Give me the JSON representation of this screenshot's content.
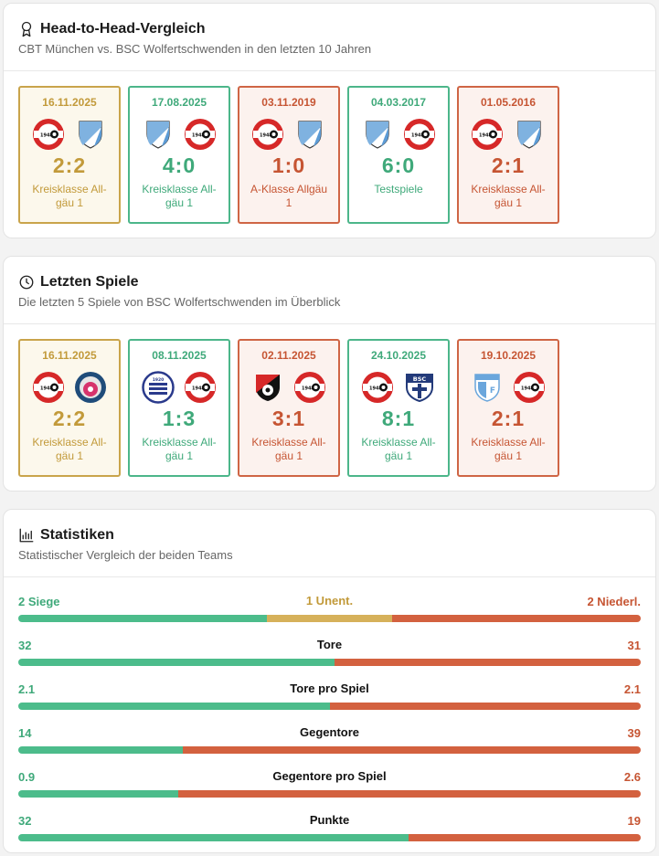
{
  "h2h": {
    "title": "Head-to-Head-Vergleich",
    "subtitle": "CBT München vs. BSC Wolfertschwenden in den letzten 10 Jahren",
    "matches": [
      {
        "date": "16.11.2025",
        "score": "2:2",
        "comp": "Kreisklasse All-gäu 1",
        "result": "draw",
        "home": "cbt",
        "away": "bsc"
      },
      {
        "date": "17.08.2025",
        "score": "4:0",
        "comp": "Kreisklasse All-gäu 1",
        "result": "win",
        "home": "bsc",
        "away": "cbt"
      },
      {
        "date": "03.11.2019",
        "score": "1:0",
        "comp": "A-Klasse Allgäu 1",
        "result": "loss",
        "home": "cbt",
        "away": "bsc"
      },
      {
        "date": "04.03.2017",
        "score": "6:0",
        "comp": "Testspiele",
        "result": "win",
        "home": "bsc",
        "away": "cbt"
      },
      {
        "date": "01.05.2016",
        "score": "2:1",
        "comp": "Kreisklasse All-gäu 1",
        "result": "loss",
        "home": "cbt",
        "away": "bsc"
      }
    ]
  },
  "recent": {
    "title": "Letzten Spiele",
    "subtitle": "Die letzten 5 Spiele von BSC Wolfertschwenden im Überblick",
    "matches": [
      {
        "date": "16.11.2025",
        "score": "2:2",
        "comp": "Kreisklasse All-gäu 1",
        "result": "draw",
        "home": "cbt",
        "away": "pink"
      },
      {
        "date": "08.11.2025",
        "score": "1:3",
        "comp": "Kreisklasse All-gäu 1",
        "result": "win",
        "home": "buxheim",
        "away": "cbt"
      },
      {
        "date": "02.11.2025",
        "score": "3:1",
        "comp": "Kreisklasse All-gäu 1",
        "result": "loss",
        "home": "redblack",
        "away": "cbt"
      },
      {
        "date": "24.10.2025",
        "score": "8:1",
        "comp": "Kreisklasse All-gäu 1",
        "result": "win",
        "home": "cbt",
        "away": "bscnavy"
      },
      {
        "date": "19.10.2025",
        "score": "2:1",
        "comp": "Kreisklasse All-gäu 1",
        "result": "loss",
        "home": "lightblue",
        "away": "cbt"
      }
    ]
  },
  "stats": {
    "title": "Statistiken",
    "subtitle": "Statistischer Vergleich der beiden Teams",
    "rows": [
      {
        "left": "2 Siege",
        "mid": "1 Unent.",
        "right": "2 Niederl.",
        "type": "record",
        "l": 2,
        "m": 1,
        "r": 2
      },
      {
        "left": "32",
        "mid": "Tore",
        "right": "31",
        "l": 32,
        "r": 31
      },
      {
        "left": "2.1",
        "mid": "Tore pro Spiel",
        "right": "2.1",
        "l": 2.1,
        "r": 2.1
      },
      {
        "left": "14",
        "mid": "Gegentore",
        "right": "39",
        "l": 14,
        "r": 39
      },
      {
        "left": "0.9",
        "mid": "Gegentore pro Spiel",
        "right": "2.6",
        "l": 0.9,
        "r": 2.6
      },
      {
        "left": "32",
        "mid": "Punkte",
        "right": "19",
        "l": 32,
        "r": 19
      }
    ]
  },
  "colors": {
    "win": "#4cbc8b",
    "draw": "#d6b15a",
    "loss": "#d3613f"
  }
}
